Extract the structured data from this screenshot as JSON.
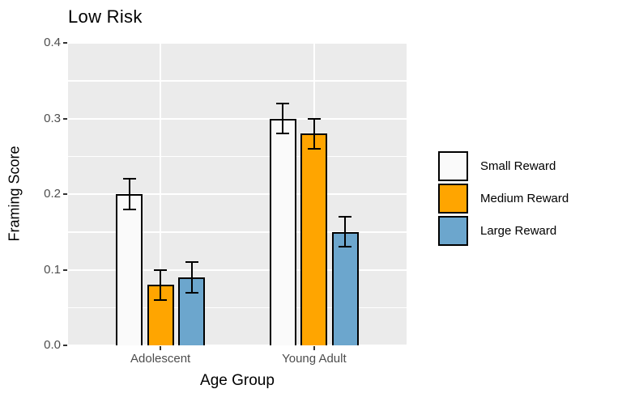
{
  "title": "Low Risk",
  "axes": {
    "x_title": "Age Group",
    "y_title": "Framing Score"
  },
  "chart_data": {
    "type": "bar",
    "title": "Low Risk",
    "categories": [
      "Adolescent",
      "Young Adult"
    ],
    "series": [
      {
        "name": "Small Reward",
        "color": "#FAFAFA",
        "values": [
          0.2,
          0.3
        ],
        "errors": [
          0.02,
          0.02
        ]
      },
      {
        "name": "Medium Reward",
        "color": "#FFA500",
        "values": [
          0.08,
          0.28
        ],
        "errors": [
          0.02,
          0.02
        ]
      },
      {
        "name": "Large Reward",
        "color": "#6CA6CD",
        "values": [
          0.09,
          0.15
        ],
        "errors": [
          0.02,
          0.02
        ]
      }
    ],
    "xlabel": "Age Group",
    "ylabel": "Framing Score",
    "ylim": [
      0,
      0.4
    ],
    "yticks": [
      0.0,
      0.1,
      0.2,
      0.3,
      0.4
    ],
    "ytick_labels": [
      "0.0",
      "0.1",
      "0.2",
      "0.3",
      "0.4"
    ],
    "minor_ticks": [
      0.05,
      0.15,
      0.25,
      0.35
    ],
    "grid": true,
    "error_bars": true,
    "legend_position": "right"
  },
  "legend": {
    "items": [
      {
        "label": "Small Reward",
        "color": "#FAFAFA"
      },
      {
        "label": "Medium Reward",
        "color": "#FFA500"
      },
      {
        "label": "Large Reward",
        "color": "#6CA6CD"
      }
    ]
  },
  "colors": {
    "panel_background": "#EBEBEB",
    "gridline": "#FFFFFF",
    "bar_border": "#000000",
    "error_bar": "#000000",
    "tick_label": "#4D4D4D",
    "axis_title": "#000000"
  }
}
